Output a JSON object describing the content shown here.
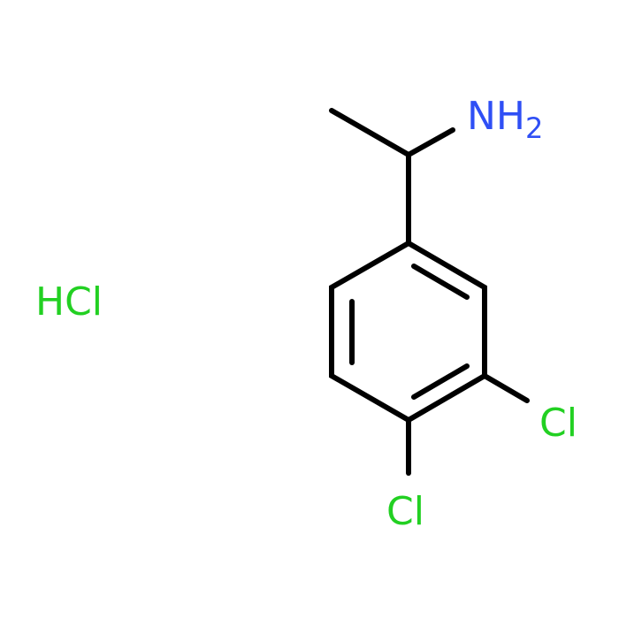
{
  "atoms": [
    {
      "label": "NH",
      "subscript": "2"
    },
    {
      "label": "Cl"
    },
    {
      "label": "Cl"
    }
  ],
  "salt": "HCl"
}
